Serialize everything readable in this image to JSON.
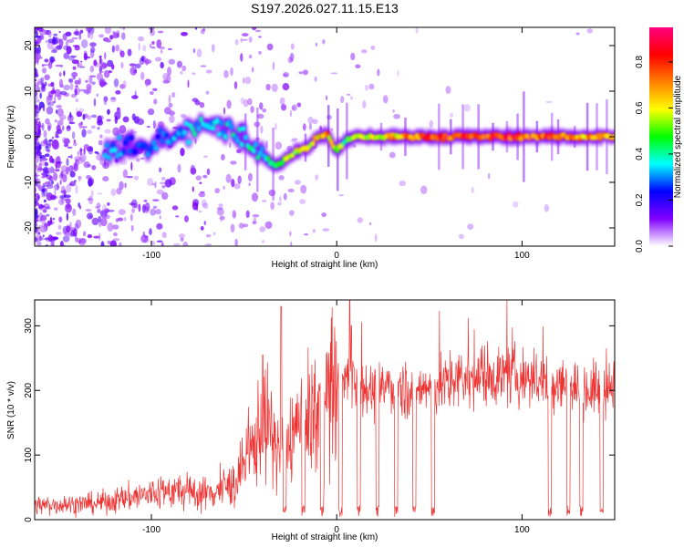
{
  "title": "S197.2026.027.11.15.E13",
  "chart_data": [
    {
      "type": "heatmap",
      "xlabel": "Height of straight line (km)",
      "ylabel": "Frequency (Hz)",
      "xlim": [
        -163,
        150
      ],
      "ylim": [
        -24,
        24
      ],
      "xticks": [
        -100,
        0,
        100
      ],
      "yticks": [
        -20,
        -10,
        0,
        10,
        20
      ],
      "colorbar": {
        "label": "Normalized spectral amplitude",
        "range": [
          0.0,
          0.95
        ],
        "ticks": [
          0.0,
          0.2,
          0.4,
          0.6,
          0.8
        ],
        "colors": [
          "#ffffff",
          "#8000ff",
          "#0000ff",
          "#00ffff",
          "#00ff00",
          "#ffff00",
          "#ff8000",
          "#ff0000",
          "#ff0080"
        ]
      },
      "ridge": {
        "description_points_x": [
          -120,
          -105,
          -90,
          -80,
          -70,
          -60,
          -50,
          -45,
          -40,
          -35,
          -30,
          -25,
          -20,
          -15,
          -10,
          -5,
          0,
          5,
          10,
          20,
          40,
          60,
          80,
          100,
          120,
          150
        ],
        "freq_hz": [
          -3,
          -2,
          0,
          1.5,
          3,
          2,
          -1,
          -2,
          -4,
          -6,
          -6,
          -4,
          -3,
          -2,
          0,
          0.5,
          -3,
          -1,
          0,
          0,
          0,
          0,
          0,
          0,
          0,
          0
        ],
        "peak_amplitude": [
          0.35,
          0.3,
          0.35,
          0.4,
          0.4,
          0.4,
          0.45,
          0.45,
          0.4,
          0.5,
          0.6,
          0.6,
          0.6,
          0.6,
          0.7,
          0.8,
          0.6,
          0.55,
          0.6,
          0.6,
          0.85,
          0.9,
          0.9,
          0.9,
          0.85,
          0.7
        ]
      }
    },
    {
      "type": "line",
      "xlabel": "Height of straight line (km)",
      "ylabel": "SNR (10 * v/v)",
      "xlim": [
        -163,
        150
      ],
      "ylim": [
        0,
        340
      ],
      "xticks": [
        -100,
        0,
        100
      ],
      "yticks": [
        0,
        100,
        200,
        300
      ],
      "color": "#ee3333",
      "series_trend": {
        "x": [
          -163,
          -130,
          -100,
          -90,
          -70,
          -55,
          -45,
          -40,
          -35,
          -30,
          -20,
          -10,
          -5,
          0,
          5,
          10,
          20,
          30,
          40,
          60,
          80,
          100,
          120,
          140,
          150
        ],
        "y": [
          22,
          25,
          40,
          45,
          40,
          55,
          110,
          160,
          130,
          100,
          150,
          170,
          190,
          205,
          215,
          220,
          195,
          210,
          200,
          210,
          225,
          220,
          210,
          200,
          205
        ]
      },
      "spikes": [
        {
          "x": -40,
          "y": 255
        },
        {
          "x": -30,
          "y": 330
        },
        {
          "x": 7,
          "y": 340
        },
        {
          "x": 8,
          "y": 300
        }
      ],
      "dropouts_x": [
        -28,
        -18,
        -8,
        2,
        12,
        22,
        32,
        42,
        52,
        115,
        125,
        132,
        143
      ]
    }
  ]
}
